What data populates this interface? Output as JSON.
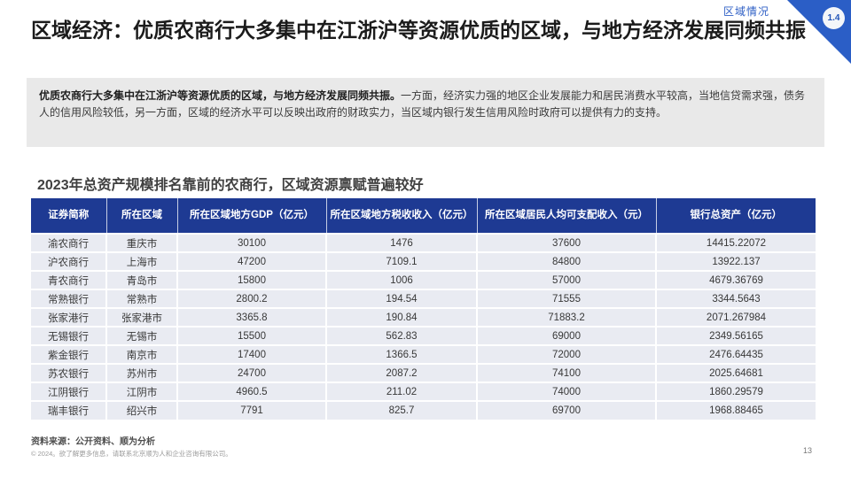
{
  "page": {
    "eyebrow": "区域情况",
    "badge": "1.4",
    "title": "区域经济：优质农商行大多集中在江浙沪等资源优质的区域，与地方经济发展同频共振",
    "page_number": "13"
  },
  "summary": {
    "lead": "优质农商行大多集中在江浙沪等资源优质的区域，与地方经济发展同频共振。",
    "body": "一方面，经济实力强的地区企业发展能力和居民消费水平较高，当地信贷需求强，债务人的信用风险较低，另一方面，区域的经济水平可以反映出政府的财政实力，当区域内银行发生信用风险时政府可以提供有力的支持。"
  },
  "table_section": {
    "title": "2023年总资产规模排名靠前的农商行，区域资源禀赋普遍较好"
  },
  "table": {
    "columns": [
      "证券简称",
      "所在区域",
      "所在区域地方GDP（亿元）",
      "所在区域地方税收收入（亿元）",
      "所在区域居民人均可支配收入（元）",
      "银行总资产（亿元）"
    ],
    "rows": [
      [
        "渝农商行",
        "重庆市",
        "30100",
        "1476",
        "37600",
        "14415.22072"
      ],
      [
        "沪农商行",
        "上海市",
        "47200",
        "7109.1",
        "84800",
        "13922.137"
      ],
      [
        "青农商行",
        "青岛市",
        "15800",
        "1006",
        "57000",
        "4679.36769"
      ],
      [
        "常熟银行",
        "常熟市",
        "2800.2",
        "194.54",
        "71555",
        "3344.5643"
      ],
      [
        "张家港行",
        "张家港市",
        "3365.8",
        "190.84",
        "71883.2",
        "2071.267984"
      ],
      [
        "无锡银行",
        "无锡市",
        "15500",
        "562.83",
        "69000",
        "2349.56165"
      ],
      [
        "紫金银行",
        "南京市",
        "17400",
        "1366.5",
        "72000",
        "2476.64435"
      ],
      [
        "苏农银行",
        "苏州市",
        "24700",
        "2087.2",
        "74100",
        "2025.64681"
      ],
      [
        "江阴银行",
        "江阴市",
        "4960.5",
        "211.02",
        "74000",
        "1860.29579"
      ],
      [
        "瑞丰银行",
        "绍兴市",
        "7791",
        "825.7",
        "69700",
        "1968.88465"
      ]
    ]
  },
  "footer": {
    "source": "资料来源：公开资料、顺为分析",
    "copyright": "© 2024。欲了解更多信息，请联系北京顺为人和企业咨询有限公司。"
  },
  "colors": {
    "table_header_bg": "#1e3a93",
    "table_row_bg": "#e9ebf2",
    "accent_blue": "#2b5ec6",
    "summary_bg": "#e9e9e9"
  }
}
